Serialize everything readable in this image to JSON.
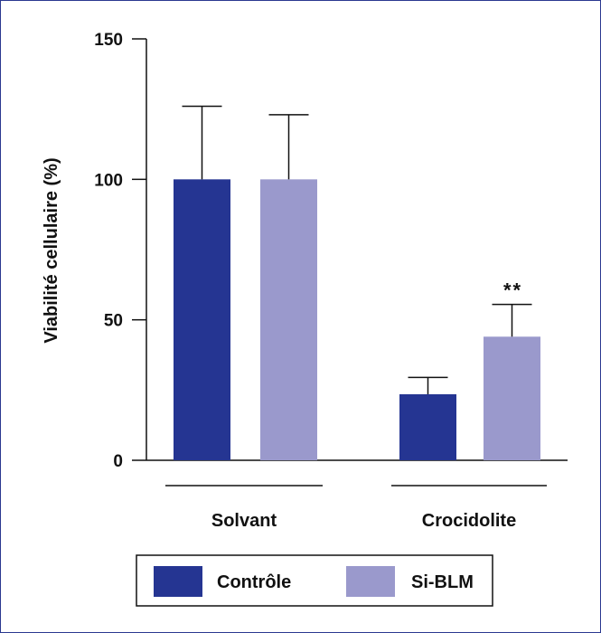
{
  "chart_data": {
    "type": "bar",
    "ylabel": "Viabilité cellulaire (%)",
    "ylim": [
      0,
      150
    ],
    "yticks": [
      0,
      50,
      100,
      150
    ],
    "yticks_text": [
      "0",
      "50",
      "100",
      "150"
    ],
    "categories": [
      "Solvant",
      "Crocidolite"
    ],
    "series": [
      {
        "name": "Contrôle",
        "color": "#253592",
        "values": [
          100,
          23.5
        ],
        "error": [
          26,
          6
        ]
      },
      {
        "name": "Si-BLM",
        "color": "#9a99cc",
        "values": [
          100,
          44
        ],
        "error": [
          23,
          11.5
        ]
      }
    ],
    "annotations": [
      {
        "text": "**",
        "category": "Crocidolite",
        "series": "Si-BLM"
      }
    ],
    "legend": {
      "position": "bottom"
    },
    "grid": false
  }
}
